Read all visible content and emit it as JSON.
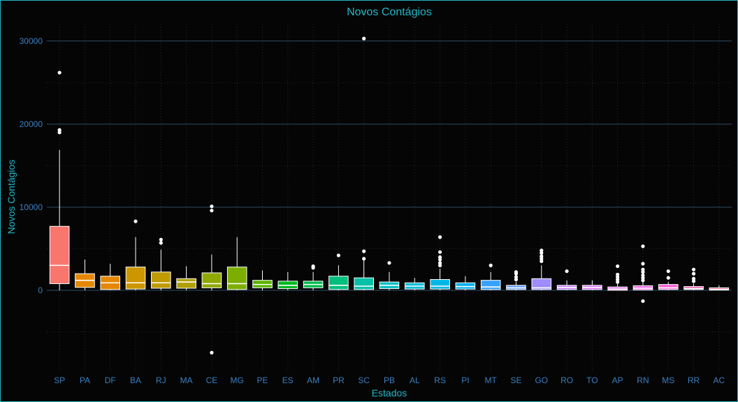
{
  "chart_data": {
    "type": "box",
    "title": "Novos Contágios",
    "xlabel": "Estados",
    "ylabel": "Novos Contágios",
    "ylim": [
      -10000,
      32000
    ],
    "yticks": [
      0,
      10000,
      20000,
      30000
    ],
    "grid": true,
    "legend": "none",
    "categories": [
      "SP",
      "PA",
      "DF",
      "BA",
      "RJ",
      "MA",
      "CE",
      "MG",
      "PE",
      "ES",
      "AM",
      "PR",
      "SC",
      "PB",
      "AL",
      "RS",
      "PI",
      "MT",
      "SE",
      "GO",
      "RO",
      "TO",
      "AP",
      "RN",
      "MS",
      "RR",
      "AC"
    ],
    "series": [
      {
        "category": "SP",
        "color": "#f8766d",
        "q1": 800,
        "median": 3000,
        "q3": 7700,
        "whisker_low": 0,
        "whisker_high": 16900,
        "outliers": [
          19000,
          19300,
          26200
        ]
      },
      {
        "category": "PA",
        "color": "#e58700",
        "q1": 350,
        "median": 1200,
        "q3": 2000,
        "whisker_low": 0,
        "whisker_high": 3700,
        "outliers": []
      },
      {
        "category": "DF",
        "color": "#e58700",
        "q1": 100,
        "median": 900,
        "q3": 1700,
        "whisker_low": 0,
        "whisker_high": 3200,
        "outliers": []
      },
      {
        "category": "BA",
        "color": "#cd9600",
        "q1": 150,
        "median": 900,
        "q3": 2800,
        "whisker_low": 0,
        "whisker_high": 6400,
        "outliers": [
          8300
        ]
      },
      {
        "category": "RJ",
        "color": "#c09b00",
        "q1": 250,
        "median": 900,
        "q3": 2200,
        "whisker_low": 0,
        "whisker_high": 4900,
        "outliers": [
          5700,
          6100
        ]
      },
      {
        "category": "MA",
        "color": "#b1a000",
        "q1": 250,
        "median": 1000,
        "q3": 1400,
        "whisker_low": 0,
        "whisker_high": 2900,
        "outliers": []
      },
      {
        "category": "CE",
        "color": "#8fa900",
        "q1": 300,
        "median": 800,
        "q3": 2100,
        "whisker_low": 0,
        "whisker_high": 4300,
        "outliers": [
          -7500,
          9600,
          10100
        ]
      },
      {
        "category": "MG",
        "color": "#7cae00",
        "q1": 100,
        "median": 800,
        "q3": 2800,
        "whisker_low": 0,
        "whisker_high": 6400,
        "outliers": []
      },
      {
        "category": "PE",
        "color": "#5bb300",
        "q1": 300,
        "median": 700,
        "q3": 1200,
        "whisker_low": 0,
        "whisker_high": 2400,
        "outliers": []
      },
      {
        "category": "ES",
        "color": "#00b81f",
        "q1": 200,
        "median": 600,
        "q3": 1100,
        "whisker_low": 0,
        "whisker_high": 2200,
        "outliers": []
      },
      {
        "category": "AM",
        "color": "#00bb4e",
        "q1": 300,
        "median": 700,
        "q3": 1100,
        "whisker_low": 0,
        "whisker_high": 2200,
        "outliers": [
          2700,
          2900
        ]
      },
      {
        "category": "PR",
        "color": "#00bf7d",
        "q1": 100,
        "median": 600,
        "q3": 1700,
        "whisker_low": 0,
        "whisker_high": 3000,
        "outliers": [
          4200
        ]
      },
      {
        "category": "SC",
        "color": "#00c0a7",
        "q1": 100,
        "median": 500,
        "q3": 1500,
        "whisker_low": 0,
        "whisker_high": 3600,
        "outliers": [
          3800,
          4700,
          30300
        ]
      },
      {
        "category": "PB",
        "color": "#00c0c4",
        "q1": 200,
        "median": 600,
        "q3": 1000,
        "whisker_low": 0,
        "whisker_high": 2200,
        "outliers": [
          3300
        ]
      },
      {
        "category": "AL",
        "color": "#00bcd8",
        "q1": 150,
        "median": 500,
        "q3": 900,
        "whisker_low": 0,
        "whisker_high": 1500,
        "outliers": []
      },
      {
        "category": "RS",
        "color": "#00b8e7",
        "q1": 150,
        "median": 500,
        "q3": 1300,
        "whisker_low": 0,
        "whisker_high": 2600,
        "outliers": [
          3000,
          3300,
          3700,
          4000,
          4600,
          6400
        ]
      },
      {
        "category": "PI",
        "color": "#00b0f6",
        "q1": 150,
        "median": 450,
        "q3": 900,
        "whisker_low": 0,
        "whisker_high": 1700,
        "outliers": []
      },
      {
        "category": "MT",
        "color": "#35a2ff",
        "q1": 100,
        "median": 400,
        "q3": 1200,
        "whisker_low": 0,
        "whisker_high": 2200,
        "outliers": [
          3000
        ]
      },
      {
        "category": "SE",
        "color": "#619cff",
        "q1": 100,
        "median": 300,
        "q3": 600,
        "whisker_low": 0,
        "whisker_high": 1000,
        "outliers": [
          1300,
          1600,
          2000,
          2200
        ]
      },
      {
        "category": "GO",
        "color": "#9f8cff",
        "q1": 100,
        "median": 300,
        "q3": 1400,
        "whisker_low": 0,
        "whisker_high": 3000,
        "outliers": [
          3500,
          3800,
          4100,
          4500,
          4800
        ]
      },
      {
        "category": "RO",
        "color": "#c77cff",
        "q1": 100,
        "median": 350,
        "q3": 600,
        "whisker_low": 0,
        "whisker_high": 1200,
        "outliers": [
          2300
        ]
      },
      {
        "category": "TO",
        "color": "#dc72f9",
        "q1": 100,
        "median": 350,
        "q3": 600,
        "whisker_low": 0,
        "whisker_high": 1200,
        "outliers": []
      },
      {
        "category": "AP",
        "color": "#e76bf3",
        "q1": 0,
        "median": 150,
        "q3": 400,
        "whisker_low": 0,
        "whisker_high": 800,
        "outliers": [
          1000,
          1300,
          1600,
          1900,
          2900
        ]
      },
      {
        "category": "RN",
        "color": "#f164e4",
        "q1": 50,
        "median": 250,
        "q3": 550,
        "whisker_low": 0,
        "whisker_high": 1000,
        "outliers": [
          -1300,
          1200,
          1500,
          1800,
          2200,
          2500,
          3200,
          5300
        ]
      },
      {
        "category": "MS",
        "color": "#fa62d4",
        "q1": 100,
        "median": 300,
        "q3": 700,
        "whisker_low": 0,
        "whisker_high": 1000,
        "outliers": [
          1500,
          2300
        ]
      },
      {
        "category": "RR",
        "color": "#ff64b0",
        "q1": 100,
        "median": 200,
        "q3": 450,
        "whisker_low": 0,
        "whisker_high": 800,
        "outliers": [
          1100,
          1400,
          2000,
          2500
        ]
      },
      {
        "category": "AC",
        "color": "#ff6c91",
        "q1": 30,
        "median": 100,
        "q3": 300,
        "whisker_low": 0,
        "whisker_high": 600,
        "outliers": []
      }
    ]
  },
  "colors": {
    "background": "#050505",
    "frame_border": "#1fb8c8",
    "title": "#1fb8c8",
    "tick_labels": "#3a7fc1",
    "grid_major": "#2f4d66",
    "box_line": "#ffffff"
  }
}
